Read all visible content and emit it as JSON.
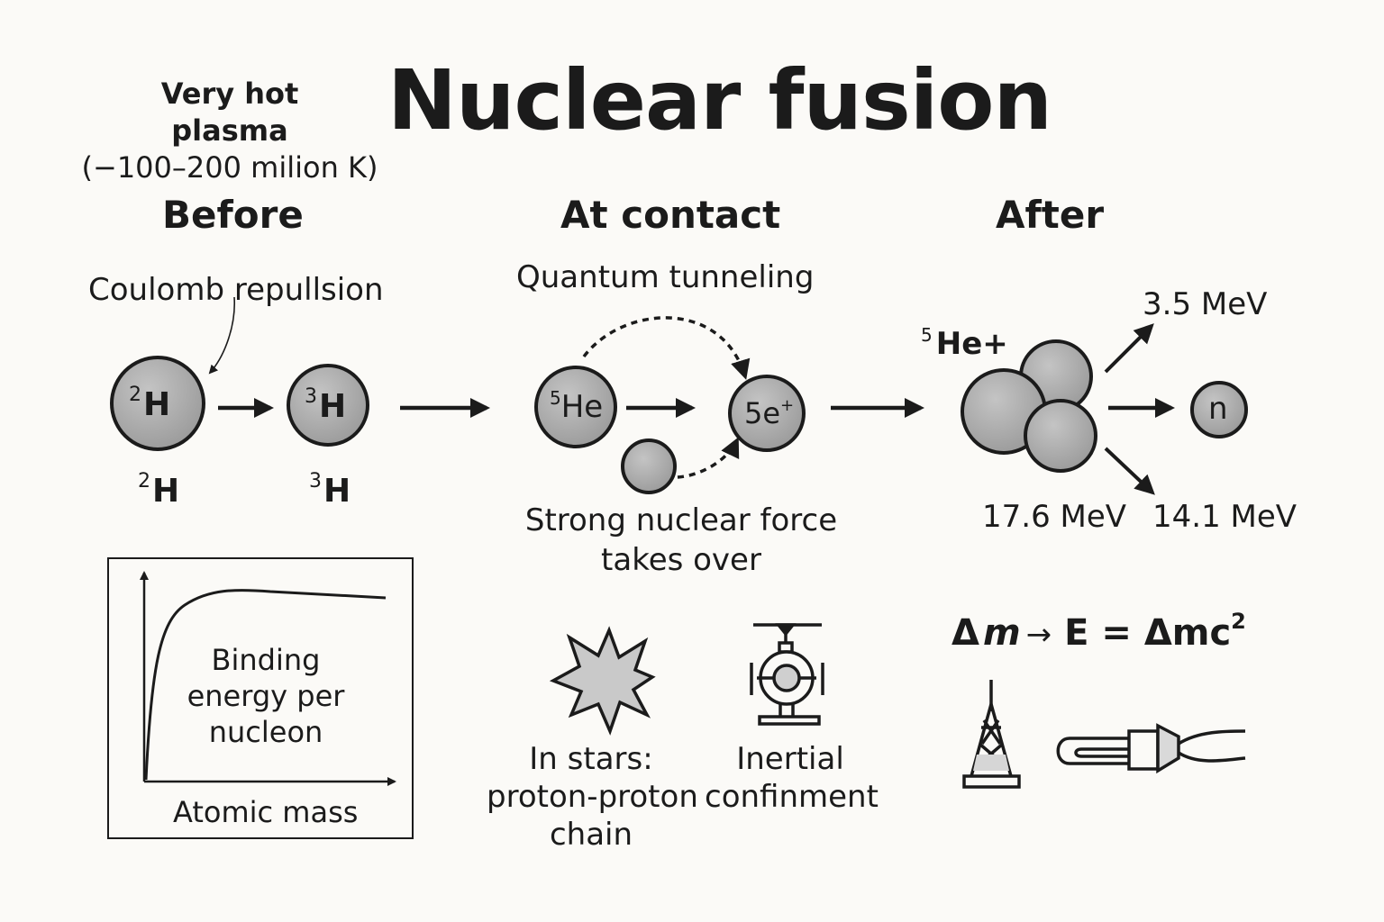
{
  "title": "Nuclear fusion",
  "plasma": {
    "line1": "Very hot",
    "line2": "plasma",
    "line3": "(−100–200 milion K)"
  },
  "stages": {
    "before": "Before",
    "contact": "At contact",
    "after": "After"
  },
  "before": {
    "coulomb_label": "Coulomb repullsion",
    "nucleus_a": {
      "mass": "2",
      "symbol": "H"
    },
    "nucleus_b": {
      "mass": "3",
      "symbol": "H"
    },
    "caption_a": {
      "mass": "2",
      "symbol": "H"
    },
    "caption_b": {
      "mass": "3",
      "symbol": "H"
    }
  },
  "contact": {
    "tunneling_label": "Quantum tunneling",
    "nucleus_he": {
      "mass": "5",
      "symbol": "He"
    },
    "nucleus_target": {
      "symbol": "5e",
      "sup": "+"
    },
    "strong_force_line1": "Strong nuclear force",
    "strong_force_line2": "takes over"
  },
  "after": {
    "he_label": {
      "mass": "5",
      "symbol": "He+"
    },
    "neutron": "n",
    "energy_top": "3.5 MeV",
    "energy_total": "17.6 MeV",
    "energy_neutron": "14.1 MeV"
  },
  "graph": {
    "ylabel_line1": "Binding",
    "ylabel_line2": "energy per",
    "ylabel_line3": "nucleon",
    "xlabel": "Atomic mass"
  },
  "stars": {
    "line1": "In stars:",
    "line2": "proton-proton",
    "line3": "chain"
  },
  "inertial": {
    "line1": "Inertial",
    "line2": "confinment"
  },
  "formula": {
    "delta1": "Δ",
    "m": "m",
    "arrow": "→",
    "E": "E",
    "eq": "=",
    "delta2": "Δmc",
    "exp": "2"
  },
  "colors": {
    "nucleus_fill": "#a5a5a5",
    "stroke": "#1b1b1b",
    "background": "#fbfaf7"
  },
  "icons": [
    "star-burst-icon",
    "inertial-confinement-icon",
    "power-tower-icon",
    "plug-icon"
  ]
}
